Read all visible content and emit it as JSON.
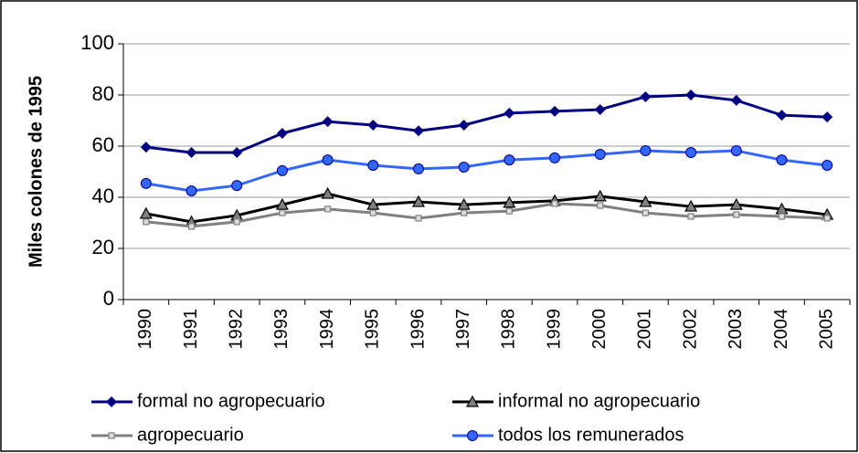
{
  "chart_data": {
    "type": "line",
    "y_label": "Miles colones de 1995",
    "categories": [
      "1990",
      "1991",
      "1992",
      "1993",
      "1994",
      "1995",
      "1996",
      "1997",
      "1998",
      "1999",
      "2000",
      "2001",
      "2002",
      "2003",
      "2004",
      "2005"
    ],
    "ylim": [
      0,
      100
    ],
    "yticks": [
      0,
      20,
      40,
      60,
      80,
      100
    ],
    "grid": true,
    "series": [
      {
        "name": "formal no agropecuario",
        "color": "#000080",
        "marker": "diamond",
        "values": [
          59.6,
          57.5,
          57.5,
          65,
          69.6,
          68.2,
          66,
          68.2,
          72.9,
          73.6,
          74.3,
          79.3,
          80,
          77.9,
          72.1,
          71.4
        ]
      },
      {
        "name": "informal no agropecuario",
        "color": "#000000",
        "marker": "triangle",
        "values": [
          33.6,
          30.4,
          32.9,
          37.1,
          41.4,
          37.1,
          38.2,
          37.1,
          37.9,
          38.6,
          40.4,
          38.2,
          36.4,
          37.1,
          35.4,
          33.2
        ]
      },
      {
        "name": "agropecuario",
        "color": "#808080",
        "marker": "square",
        "values": [
          30.4,
          28.6,
          30.4,
          33.9,
          35.4,
          33.9,
          31.8,
          33.9,
          34.6,
          37.5,
          36.8,
          33.9,
          32.5,
          33.2,
          32.5,
          31.8
        ]
      },
      {
        "name": "todos los remunerados",
        "color": "#3366ff",
        "marker": "circle",
        "values": [
          45.4,
          42.5,
          44.6,
          50.4,
          54.6,
          52.5,
          51.1,
          51.8,
          54.6,
          55.4,
          56.8,
          58.2,
          57.5,
          58.2,
          54.6,
          52.5
        ]
      }
    ]
  }
}
